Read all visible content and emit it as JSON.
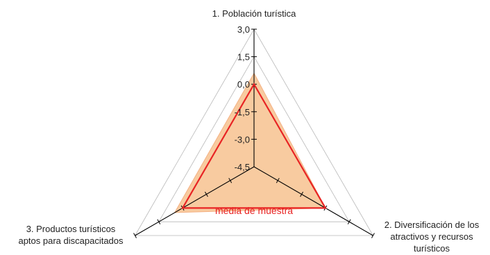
{
  "chart_data": {
    "type": "radar",
    "axes": [
      [
        "1. Población turística"
      ],
      [
        "2. Diversificación de los",
        "atractivos y recursos",
        "turísticos"
      ],
      [
        "3. Productos turísticos",
        "aptos para discapacitados"
      ]
    ],
    "rlim": [
      -4.5,
      3.0
    ],
    "r_ticks": [
      "3,0",
      "1,5",
      "0,0",
      "-1,5",
      "-3,0",
      "-4,5"
    ],
    "grid": true,
    "series": [
      {
        "name": "",
        "type": "area",
        "values": [
          0.6,
          0.0,
          0.5
        ],
        "color": "#f8cba0",
        "edge": "#f4b183"
      },
      {
        "name": "media de muestra",
        "type": "line",
        "values": [
          0.0,
          0.0,
          0.0
        ],
        "color": "#e82424"
      }
    ],
    "annotations": [
      "media de muestra"
    ]
  }
}
